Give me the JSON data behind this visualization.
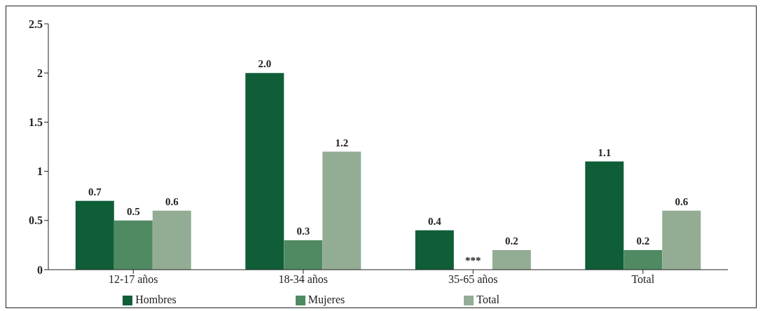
{
  "chart_data": {
    "type": "bar",
    "categories": [
      "12-17 años",
      "18-34 años",
      "35-65 años",
      "Total"
    ],
    "series": [
      {
        "name": "Hombres",
        "color": "#0f5e38",
        "values": [
          0.7,
          2.0,
          0.4,
          1.1
        ],
        "value_labels": [
          "0.7",
          "2.0",
          "0.4",
          "1.1"
        ]
      },
      {
        "name": "Mujeres",
        "color": "#4f8a63",
        "values": [
          0.5,
          0.3,
          null,
          0.2
        ],
        "value_labels": [
          "0.5",
          "0.3",
          "***",
          "0.2"
        ]
      },
      {
        "name": "Total",
        "color": "#93ad95",
        "values": [
          0.6,
          1.2,
          0.2,
          0.6
        ],
        "value_labels": [
          "0.6",
          "1.2",
          "0.2",
          "0.6"
        ]
      }
    ],
    "ylim": [
      0,
      2.5
    ],
    "yticks": [
      0,
      0.5,
      1,
      1.5,
      2,
      2.5
    ],
    "grid": false,
    "legend": "bottom"
  }
}
